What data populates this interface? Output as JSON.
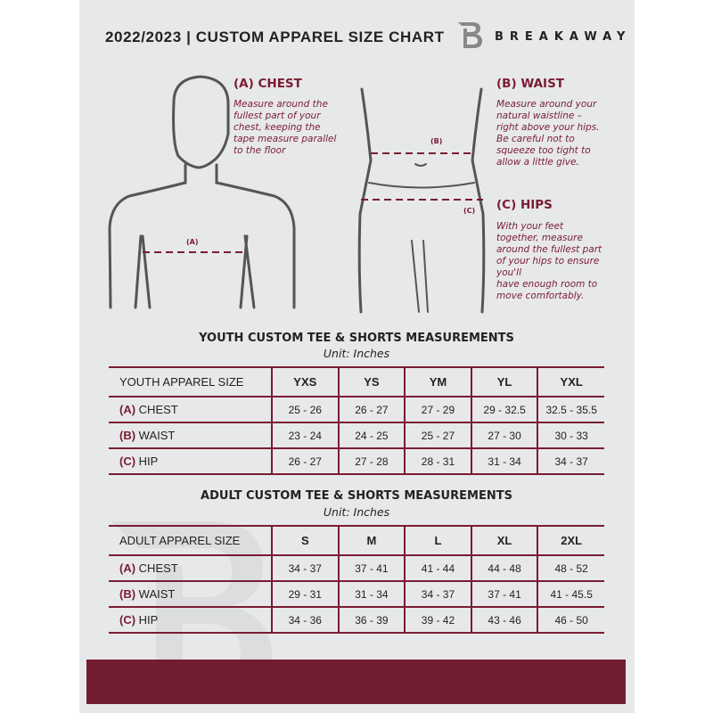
{
  "header": {
    "title": "2022/2023  |  CUSTOM APPAREL SIZE CHART",
    "brand": "BREAKAWAY",
    "logo_letter": "B"
  },
  "guide": {
    "chest": {
      "heading": "(A) CHEST",
      "text": "Measure around the\nfullest part of your\nchest, keeping the\ntape measure parallel\nto the floor",
      "marker": "(A)"
    },
    "waist": {
      "heading": "(B) WAIST",
      "text": "Measure around your\nnatural waistline –\nright above your hips.\nBe careful not to\nsqueeze too tight to\nallow a little give.",
      "marker": "(B)"
    },
    "hips": {
      "heading": "(C) HIPS",
      "text": "With your feet\ntogether, measure\naround the fullest part\nof your hips to ensure\nyou'll\nhave enough room to\nmove comfortably.",
      "marker": "(C)"
    }
  },
  "youth": {
    "title": "YOUTH CUSTOM TEE & SHORTS MEASUREMENTS",
    "unit": "Unit: Inches",
    "size_label": "YOUTH APPAREL SIZE",
    "sizes": [
      "YXS",
      "YS",
      "YM",
      "YL",
      "YXL"
    ],
    "rows": [
      {
        "letter": "(A)",
        "name": "CHEST",
        "values": [
          "25 - 26",
          "26 - 27",
          "27 - 29",
          "29 - 32.5",
          "32.5 - 35.5"
        ]
      },
      {
        "letter": "(B)",
        "name": "WAIST",
        "values": [
          "23 - 24",
          "24 - 25",
          "25 - 27",
          "27 - 30",
          "30 - 33"
        ]
      },
      {
        "letter": "(C)",
        "name": "HIP",
        "values": [
          "26 - 27",
          "27 - 28",
          "28 - 31",
          "31 - 34",
          "34 - 37"
        ]
      }
    ]
  },
  "adult": {
    "title": "ADULT CUSTOM TEE & SHORTS MEASUREMENTS",
    "unit": "Unit: Inches",
    "size_label": "ADULT APPAREL SIZE",
    "sizes": [
      "S",
      "M",
      "L",
      "XL",
      "2XL"
    ],
    "rows": [
      {
        "letter": "(A)",
        "name": "CHEST",
        "values": [
          "34 - 37",
          "37 - 41",
          "41 - 44",
          "44 - 48",
          "48 - 52"
        ]
      },
      {
        "letter": "(B)",
        "name": "WAIST",
        "values": [
          "29 - 31",
          "31 - 34",
          "34 - 37",
          "37 - 41",
          "41 - 45.5"
        ]
      },
      {
        "letter": "(C)",
        "name": "HIP",
        "values": [
          "34 - 36",
          "36 - 39",
          "39 - 42",
          "43 - 46",
          "46 - 50"
        ]
      }
    ]
  },
  "colors": {
    "accent": "#7a1c33",
    "background": "#e7e8e9",
    "band": "#721c31"
  }
}
